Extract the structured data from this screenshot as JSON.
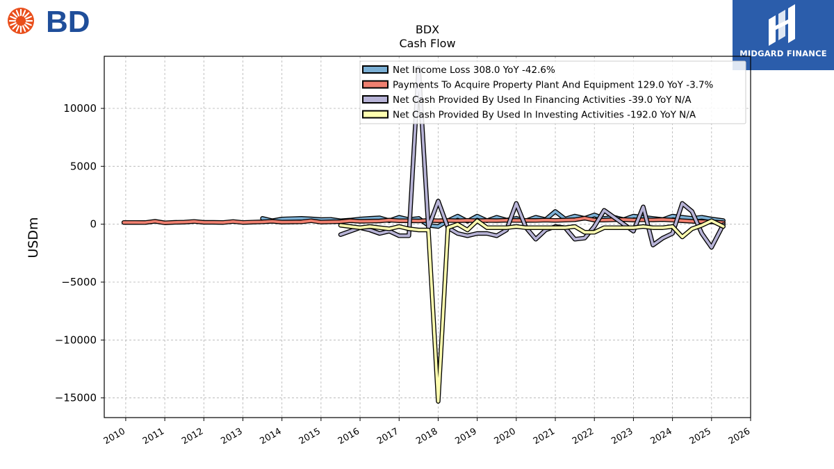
{
  "brand": {
    "bd_logo_text": "BD",
    "bd_color": "#1f4e9a",
    "bd_burst_color": "#e94e1b",
    "mf_logo_text": "MIDGARD FINANCE",
    "mf_bg_color": "#2b5dab"
  },
  "chart_data": {
    "type": "line",
    "title": "BDX",
    "subtitle": "Cash Flow",
    "ylabel": "USDm",
    "xlabel": "",
    "xlim": [
      2009.45,
      2026.0
    ],
    "ylim": [
      -16700,
      14500
    ],
    "x_ticks": [
      2010,
      2011,
      2012,
      2013,
      2014,
      2015,
      2016,
      2017,
      2018,
      2019,
      2020,
      2021,
      2022,
      2023,
      2024,
      2025,
      2026
    ],
    "x_tick_labels": [
      "2010",
      "2011",
      "2012",
      "2013",
      "2014",
      "2015",
      "2016",
      "2017",
      "2018",
      "2019",
      "2020",
      "2021",
      "2022",
      "2023",
      "2024",
      "2025",
      "2026"
    ],
    "y_ticks": [
      10000,
      5000,
      0,
      -5000,
      -10000,
      -15000
    ],
    "y_tick_labels": [
      "10000",
      "5000",
      "0",
      "−5000",
      "−10000",
      "−15000"
    ],
    "grid": true,
    "legend_position": "top-right",
    "series": [
      {
        "name": "Net Income Loss",
        "legend_label": "Net Income Loss  308.0 YoY -42.6%",
        "color": "#7bafd4",
        "x": [
          2013.5,
          2013.75,
          2014.0,
          2014.25,
          2014.5,
          2014.75,
          2015.0,
          2015.25,
          2015.5,
          2015.75,
          2016.0,
          2016.25,
          2016.5,
          2016.75,
          2017.0,
          2017.25,
          2017.5,
          2017.75,
          2018.0,
          2018.25,
          2018.5,
          2018.75,
          2019.0,
          2019.25,
          2019.5,
          2019.75,
          2020.0,
          2020.25,
          2020.5,
          2020.75,
          2021.0,
          2021.25,
          2021.5,
          2021.75,
          2022.0,
          2022.25,
          2022.5,
          2022.75,
          2023.0,
          2023.25,
          2023.5,
          2023.75,
          2024.0,
          2024.25,
          2024.5,
          2024.75,
          2025.0,
          2025.3
        ],
        "values": [
          500,
          300,
          450,
          480,
          500,
          460,
          400,
          420,
          300,
          350,
          450,
          500,
          550,
          300,
          600,
          400,
          500,
          -100,
          -200,
          300,
          700,
          250,
          700,
          300,
          600,
          350,
          500,
          300,
          600,
          400,
          1100,
          450,
          700,
          500,
          800,
          500,
          600,
          400,
          700,
          600,
          500,
          400,
          700,
          600,
          500,
          600,
          450,
          308
        ]
      },
      {
        "name": "Payments To Acquire Property Plant And Equipment",
        "legend_label": "Payments To Acquire Property Plant And Equipment  129.0 YoY -3.7%",
        "color": "#f08070",
        "x": [
          2009.95,
          2010.25,
          2010.5,
          2010.75,
          2011.0,
          2011.25,
          2011.5,
          2011.75,
          2012.0,
          2012.25,
          2012.5,
          2012.75,
          2013.0,
          2013.25,
          2013.5,
          2013.75,
          2014.0,
          2014.25,
          2014.5,
          2014.75,
          2015.0,
          2015.25,
          2015.5,
          2015.75,
          2016.0,
          2016.25,
          2016.5,
          2016.75,
          2017.0,
          2017.25,
          2017.5,
          2017.75,
          2018.0,
          2018.25,
          2018.5,
          2018.75,
          2019.0,
          2019.25,
          2019.5,
          2019.75,
          2020.0,
          2020.25,
          2020.5,
          2020.75,
          2021.0,
          2021.25,
          2021.5,
          2021.75,
          2022.0,
          2022.25,
          2022.5,
          2022.75,
          2023.0,
          2023.25,
          2023.5,
          2023.75,
          2024.0,
          2024.25,
          2024.5,
          2024.75,
          2025.0,
          2025.3
        ],
        "values": [
          150,
          150,
          140,
          250,
          120,
          160,
          180,
          240,
          160,
          160,
          150,
          230,
          150,
          180,
          200,
          250,
          180,
          190,
          200,
          300,
          180,
          200,
          220,
          300,
          250,
          260,
          280,
          350,
          300,
          300,
          280,
          330,
          300,
          320,
          300,
          330,
          300,
          320,
          310,
          340,
          320,
          330,
          320,
          350,
          330,
          350,
          380,
          520,
          350,
          350,
          380,
          400,
          360,
          380,
          370,
          400,
          350,
          300,
          250,
          220,
          200,
          129
        ]
      },
      {
        "name": "Net Cash Provided By Used In Financing Activities",
        "legend_label": "Net Cash Provided By Used In Financing Activities  -39.0 YoY N/A",
        "color": "#b7b3d6",
        "x": [
          2015.5,
          2015.75,
          2016.0,
          2016.25,
          2016.5,
          2016.75,
          2017.0,
          2017.25,
          2017.5,
          2017.75,
          2018.0,
          2018.25,
          2018.5,
          2018.75,
          2019.0,
          2019.25,
          2019.5,
          2019.75,
          2020.0,
          2020.25,
          2020.5,
          2020.75,
          2021.0,
          2021.25,
          2021.5,
          2021.75,
          2022.0,
          2022.25,
          2022.5,
          2022.75,
          2023.0,
          2023.25,
          2023.5,
          2023.75,
          2024.0,
          2024.25,
          2024.5,
          2024.75,
          2025.0,
          2025.3
        ],
        "values": [
          -900,
          -600,
          -300,
          -500,
          -800,
          -600,
          -1000,
          -1000,
          13500,
          -300,
          2000,
          -300,
          -800,
          -1000,
          -800,
          -800,
          -1000,
          -500,
          1800,
          -300,
          -1300,
          -500,
          -200,
          -300,
          -1300,
          -1200,
          -200,
          1200,
          600,
          0,
          -600,
          1500,
          -1800,
          -1200,
          -800,
          1800,
          1100,
          -800,
          -2000,
          -39
        ]
      },
      {
        "name": "Net Cash Provided By Used In Investing Activities",
        "legend_label": "Net Cash Provided By Used In Investing Activities  -192.0 YoY N/A",
        "color": "#fefeb0",
        "x": [
          2015.5,
          2015.75,
          2016.0,
          2016.25,
          2016.5,
          2016.75,
          2017.0,
          2017.25,
          2017.5,
          2017.75,
          2018.0,
          2018.25,
          2018.5,
          2018.75,
          2019.0,
          2019.25,
          2019.5,
          2019.75,
          2020.0,
          2020.25,
          2020.5,
          2020.75,
          2021.0,
          2021.25,
          2021.5,
          2021.75,
          2022.0,
          2022.25,
          2022.5,
          2022.75,
          2023.0,
          2023.25,
          2023.5,
          2023.75,
          2024.0,
          2024.25,
          2024.5,
          2024.75,
          2025.0,
          2025.3
        ],
        "values": [
          -100,
          -200,
          -300,
          -200,
          -300,
          -400,
          -200,
          -400,
          -500,
          -500,
          -15300,
          -300,
          0,
          -500,
          300,
          -300,
          -300,
          -300,
          -200,
          -300,
          -300,
          -300,
          -300,
          -300,
          -200,
          -700,
          -700,
          -300,
          -300,
          -300,
          -300,
          -200,
          -300,
          -300,
          -200,
          -1100,
          -400,
          -100,
          300,
          -192
        ]
      }
    ]
  }
}
